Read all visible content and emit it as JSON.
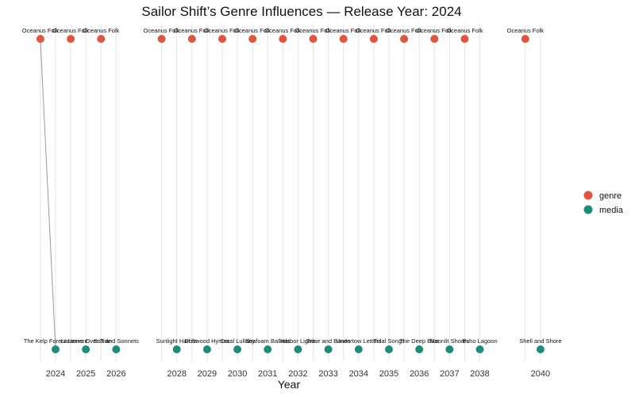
{
  "chart_data": {
    "type": "scatter",
    "title": "Sailor Shift’s Genre Influences — Release Year: 2024",
    "xlabel": "Year",
    "ylabel": "",
    "xlim": [
      2022.9,
      2040.5
    ],
    "x_ticks": [
      2024,
      2025,
      2026,
      2028,
      2029,
      2030,
      2031,
      2032,
      2033,
      2034,
      2035,
      2036,
      2037,
      2038,
      2040
    ],
    "grid": true,
    "legend_position": "right",
    "colors": {
      "genre": "#E0553E",
      "media": "#1F8C7A",
      "edge": "#999999",
      "grid": "#E5E5E5"
    },
    "series": [
      {
        "name": "genre",
        "points": [
          {
            "x": 2023.5,
            "label": "Oceanus Folk"
          },
          {
            "x": 2024.5,
            "label": "Oceanus Folk"
          },
          {
            "x": 2025.5,
            "label": "Oceanus Folk"
          },
          {
            "x": 2027.5,
            "label": "Oceanus Folk"
          },
          {
            "x": 2028.5,
            "label": "Oceanus Folk"
          },
          {
            "x": 2029.5,
            "label": "Oceanus Folk"
          },
          {
            "x": 2030.5,
            "label": "Oceanus Folk"
          },
          {
            "x": 2031.5,
            "label": "Oceanus Folk"
          },
          {
            "x": 2032.5,
            "label": "Oceanus Folk"
          },
          {
            "x": 2033.5,
            "label": "Oceanus Folk"
          },
          {
            "x": 2034.5,
            "label": "Oceanus Folk"
          },
          {
            "x": 2035.5,
            "label": "Oceanus Folk"
          },
          {
            "x": 2036.5,
            "label": "Oceanus Folk"
          },
          {
            "x": 2037.5,
            "label": "Oceanus Folk"
          },
          {
            "x": 2039.5,
            "label": "Oceanus Folk"
          }
        ]
      },
      {
        "name": "media",
        "points": [
          {
            "x": 2024,
            "label": "The Kelp Forest Lament"
          },
          {
            "x": 2025,
            "label": "Lanterns Over Tide"
          },
          {
            "x": 2026,
            "label": "Salt and Sonnets"
          },
          {
            "x": 2028,
            "label": "Sunlight Harbor"
          },
          {
            "x": 2029,
            "label": "Driftwood Hymns"
          },
          {
            "x": 2030,
            "label": "Coral Lullaby"
          },
          {
            "x": 2031,
            "label": "Seafoam Ballads"
          },
          {
            "x": 2032,
            "label": "Harbor Lights"
          },
          {
            "x": 2033,
            "label": "Brine and Bones"
          },
          {
            "x": 2034,
            "label": "Undertow Letters"
          },
          {
            "x": 2035,
            "label": "Tidal Songs"
          },
          {
            "x": 2036,
            "label": "The Deep Blue"
          },
          {
            "x": 2037,
            "label": "Moonlit Shores"
          },
          {
            "x": 2038,
            "label": "Echo Lagoon"
          },
          {
            "x": 2040,
            "label": "Shell and Shore"
          }
        ]
      }
    ],
    "edges": [
      {
        "from_series": "genre",
        "from_index": 0,
        "to_series": "media",
        "to_index": 0
      }
    ]
  }
}
